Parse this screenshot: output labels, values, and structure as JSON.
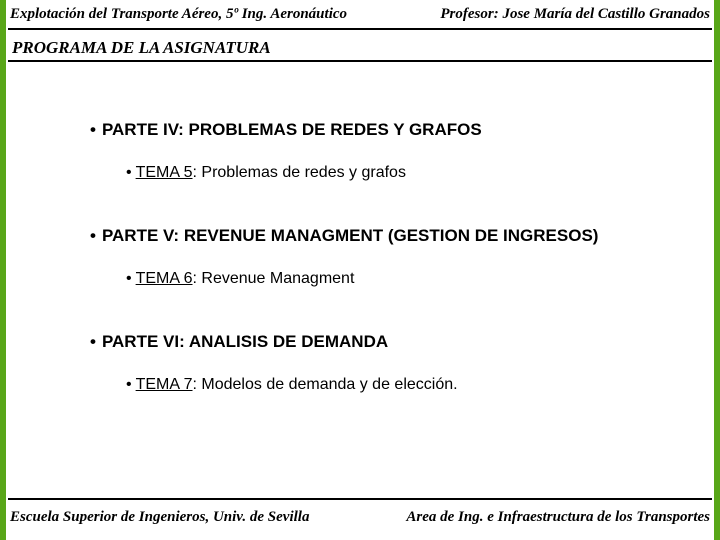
{
  "colors": {
    "accent_green": "#58a618",
    "text": "#000000",
    "background": "#ffffff",
    "rule": "#000000"
  },
  "typography": {
    "header_family": "Times New Roman",
    "body_family": "Arial",
    "header_size_pt": 15,
    "section_title_size_pt": 17,
    "part_size_pt": 17,
    "tema_size_pt": 16,
    "footer_size_pt": 15
  },
  "header": {
    "left": "Explotación del Transporte Aéreo, 5º Ing. Aeronáutico",
    "right": "Profesor: Jose María del Castillo Granados"
  },
  "section_title": "PROGRAMA DE LA ASIGNATURA",
  "parts": [
    {
      "title": "PARTE IV: PROBLEMAS  DE REDES Y GRAFOS",
      "tema_label": "TEMA 5",
      "tema_rest": ": Problemas de redes y grafos"
    },
    {
      "title": "PARTE V: REVENUE MANAGMENT (GESTION  DE INGRESOS)",
      "tema_label": "TEMA 6",
      "tema_rest": ": Revenue Managment"
    },
    {
      "title": "PARTE VI: ANALISIS DE DEMANDA",
      "tema_label": "TEMA 7",
      "tema_rest": ": Modelos de demanda y de elección."
    }
  ],
  "footer": {
    "left": "Escuela  Superior de Ingenieros, Univ. de Sevilla",
    "right": "Area de Ing. e Infraestructura de los Transportes"
  }
}
